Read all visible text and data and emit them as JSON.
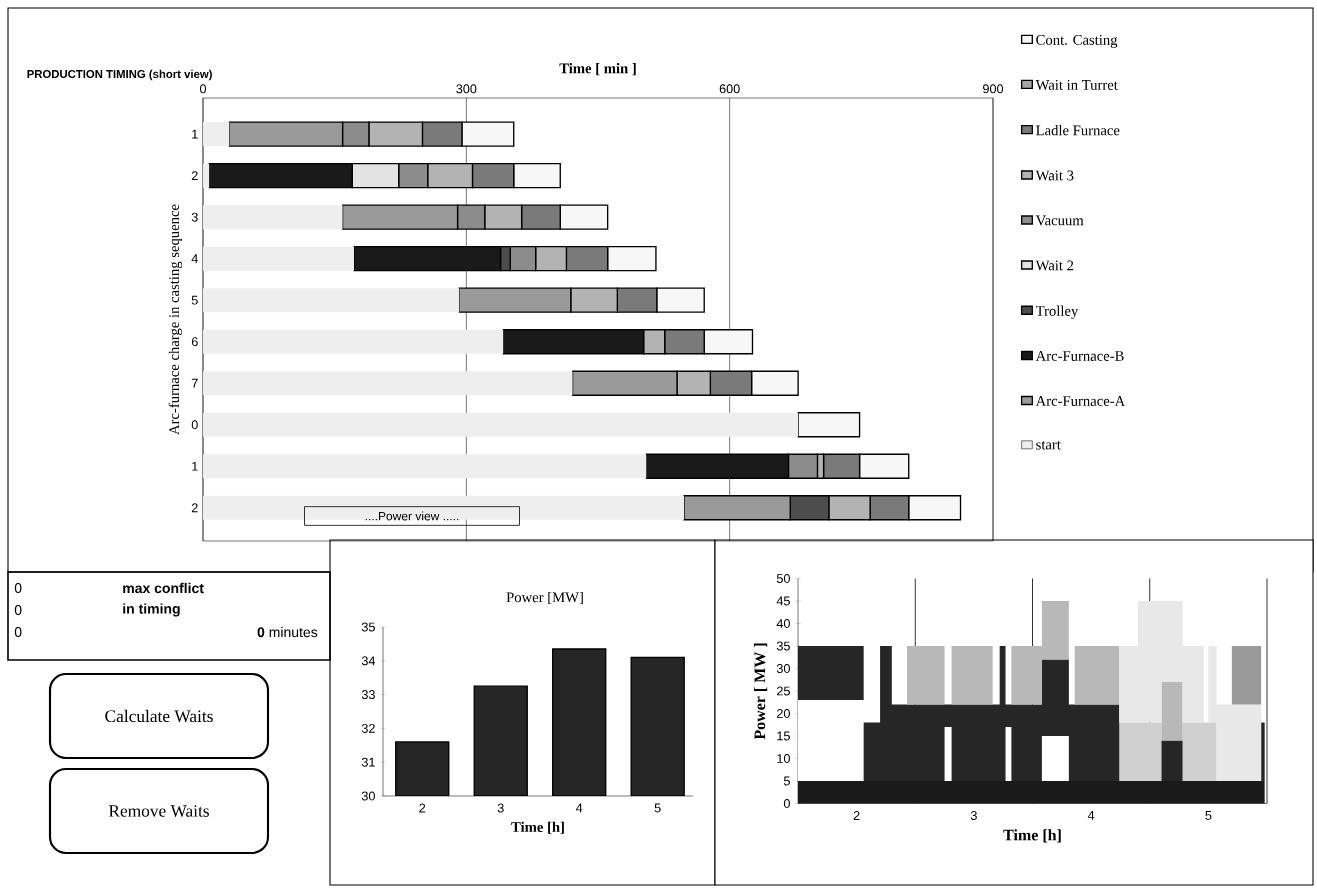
{
  "chart_data": [
    {
      "type": "bar",
      "title": "PRODUCTION TIMING (short view)",
      "xlabel": "Time [ min ]",
      "ylabel": "Arc-furnace charge in casting sequence",
      "orientation": "horizontal",
      "stacked": true,
      "grid": "x",
      "legend": "right",
      "categories": [
        "1",
        "2",
        "3",
        "4",
        "5",
        "6",
        "7",
        "0",
        "1",
        "2"
      ],
      "xlim": [
        0,
        900
      ],
      "xticks": [
        0,
        300,
        600,
        900
      ],
      "series": [
        {
          "name": "start",
          "color": "#eeeeee",
          "values": [
            30,
            7,
            159,
            172,
            292,
            342,
            421,
            678,
            505,
            548
          ]
        },
        {
          "name": "Arc-Furnace-A",
          "color": "#9a9a9a",
          "values": [
            129,
            0,
            131,
            0,
            127,
            0,
            119,
            0,
            0,
            121
          ]
        },
        {
          "name": "Arc-Furnace-B",
          "color": "#1a1a1a",
          "values": [
            0,
            163,
            0,
            167,
            0,
            160,
            0,
            0,
            162,
            0
          ]
        },
        {
          "name": "Trolley",
          "color": "#4d4d4d",
          "values": [
            0,
            0,
            0,
            11,
            0,
            0,
            0,
            0,
            0,
            44
          ]
        },
        {
          "name": "Wait 2",
          "color": "#e3e3e3",
          "values": [
            0,
            53,
            0,
            0,
            0,
            0,
            0,
            0,
            0,
            0
          ]
        },
        {
          "name": "Vacuum",
          "color": "#8c8c8c",
          "values": [
            30,
            33,
            31,
            29,
            0,
            0,
            0,
            0,
            33,
            0
          ]
        },
        {
          "name": "Wait 3",
          "color": "#b3b3b3",
          "values": [
            61,
            51,
            42,
            35,
            53,
            24,
            38,
            0,
            7,
            47
          ]
        },
        {
          "name": "Ladle Furnace",
          "color": "#7a7a7a",
          "values": [
            45,
            47,
            44,
            47,
            45,
            45,
            47,
            0,
            41,
            44
          ]
        },
        {
          "name": "Wait in Turret",
          "color": "#a6a6a6",
          "values": [
            0,
            0,
            0,
            0,
            0,
            0,
            0,
            0,
            0,
            0
          ]
        },
        {
          "name": "Cont. Casting",
          "color": "#f7f7f7",
          "values": [
            59,
            53,
            54,
            55,
            54,
            55,
            53,
            70,
            56,
            59
          ]
        }
      ],
      "annotations": [
        "....Power view ....."
      ]
    },
    {
      "type": "bar",
      "title": "Power [MW]",
      "xlabel": "Time [h]",
      "categories": [
        "2",
        "3",
        "4",
        "5"
      ],
      "values": [
        31.6,
        33.25,
        34.35,
        34.1
      ],
      "color": "#262626",
      "ylim": [
        30,
        35
      ],
      "yticks": [
        30,
        31,
        32,
        33,
        34,
        35
      ]
    },
    {
      "type": "area",
      "xlabel": "Time [h]",
      "ylabel": "Power [ MW ]",
      "stacked": true,
      "xlim": [
        1.5,
        5.5
      ],
      "xticks": [
        2,
        3,
        4,
        5
      ],
      "ylim": [
        0,
        50
      ],
      "yticks": [
        0,
        5,
        10,
        15,
        20,
        25,
        30,
        35,
        40,
        45,
        50
      ],
      "ref_lines": [
        {
          "axis": "x",
          "value": 2.5,
          "color": "#000000"
        },
        {
          "axis": "x",
          "value": 3.5,
          "color": "#000000"
        },
        {
          "axis": "x",
          "value": 4.5,
          "color": "#000000"
        },
        {
          "axis": "x",
          "value": 5.5,
          "color": "#000000"
        }
      ],
      "x": [
        1.5,
        2.06,
        2.06,
        2.2,
        2.2,
        2.3,
        2.3,
        2.43,
        2.43,
        2.75,
        2.75,
        2.81,
        2.81,
        3.16,
        3.16,
        3.22,
        3.22,
        3.27,
        3.27,
        3.32,
        3.32,
        3.58,
        3.58,
        3.81,
        3.81,
        3.86,
        3.86,
        4.24,
        4.24,
        4.4,
        4.4,
        4.6,
        4.6,
        4.78,
        4.78,
        4.96,
        4.96,
        5.0,
        5.0,
        5.07,
        5.07,
        5.2,
        5.2,
        5.45,
        5.45,
        5.48
      ],
      "series": [
        {
          "color": "#1a1a1a",
          "values": [
            5,
            5,
            5,
            5,
            5,
            5,
            5,
            5,
            5,
            5,
            5,
            5,
            5,
            5,
            5,
            5,
            5,
            5,
            5,
            5,
            5,
            5,
            5,
            5,
            5,
            5,
            5,
            5,
            5,
            5,
            5,
            5,
            5,
            5,
            5,
            5,
            5,
            5,
            5,
            5,
            5,
            5,
            5,
            5,
            5,
            5
          ]
        },
        {
          "color": "#ffffff",
          "values": [
            18,
            18,
            null,
            null,
            null,
            null,
            null,
            null,
            null,
            null,
            12,
            12,
            null,
            null,
            null,
            null,
            null,
            null,
            12,
            12,
            null,
            null,
            10,
            10,
            null,
            null,
            null,
            null,
            null,
            null,
            null,
            null,
            null,
            null,
            null,
            null,
            null,
            null,
            null,
            null,
            null,
            null,
            null,
            null,
            null,
            null
          ]
        },
        {
          "color": "#cfcfcf",
          "values": [
            null,
            null,
            null,
            null,
            null,
            null,
            null,
            null,
            null,
            null,
            null,
            null,
            null,
            null,
            null,
            null,
            null,
            null,
            null,
            null,
            null,
            null,
            null,
            null,
            null,
            null,
            null,
            null,
            13,
            13,
            13,
            13,
            null,
            null,
            13,
            13,
            13,
            13,
            13,
            13,
            null,
            null,
            null,
            null,
            null,
            null
          ]
        },
        {
          "color": "#262626",
          "values": [
            12,
            12,
            13,
            13,
            30,
            30,
            17,
            17,
            17,
            17,
            5,
            5,
            17,
            17,
            17,
            17,
            30,
            30,
            5,
            5,
            17,
            17,
            17,
            17,
            17,
            17,
            17,
            17,
            null,
            null,
            null,
            null,
            9,
            9,
            null,
            null,
            null,
            null,
            null,
            null,
            null,
            null,
            null,
            null,
            13,
            13
          ]
        },
        {
          "color": "#b8b8b8",
          "values": [
            null,
            null,
            null,
            null,
            null,
            null,
            null,
            null,
            13,
            13,
            null,
            null,
            13,
            13,
            null,
            null,
            null,
            null,
            null,
            null,
            13,
            13,
            13,
            13,
            null,
            null,
            13,
            13,
            null,
            null,
            null,
            null,
            13,
            13,
            null,
            null,
            null,
            null,
            null,
            null,
            null,
            null,
            null,
            null,
            null,
            null
          ]
        },
        {
          "color": "#e8e8e8",
          "values": [
            null,
            null,
            null,
            null,
            null,
            null,
            null,
            null,
            null,
            null,
            null,
            null,
            null,
            null,
            null,
            null,
            null,
            null,
            null,
            null,
            null,
            null,
            null,
            null,
            null,
            null,
            null,
            null,
            17,
            17,
            27,
            27,
            18,
            18,
            17,
            17,
            null,
            null,
            17,
            17,
            17,
            17,
            17,
            17,
            null,
            null
          ]
        },
        {
          "color": "#9a9a9a",
          "values": [
            null,
            null,
            null,
            null,
            null,
            null,
            null,
            null,
            null,
            null,
            null,
            null,
            null,
            null,
            null,
            null,
            null,
            null,
            null,
            null,
            null,
            null,
            null,
            null,
            null,
            null,
            null,
            null,
            null,
            null,
            null,
            null,
            null,
            null,
            null,
            null,
            null,
            null,
            null,
            null,
            null,
            null,
            13,
            13,
            null,
            null
          ]
        }
      ]
    },
    {
      "type": "other",
      "annotations": [
        "0",
        "max conflict",
        "0",
        "in timing",
        "0",
        "**0** minutes",
        "Calculate Waits",
        "Remove Waits"
      ]
    }
  ]
}
